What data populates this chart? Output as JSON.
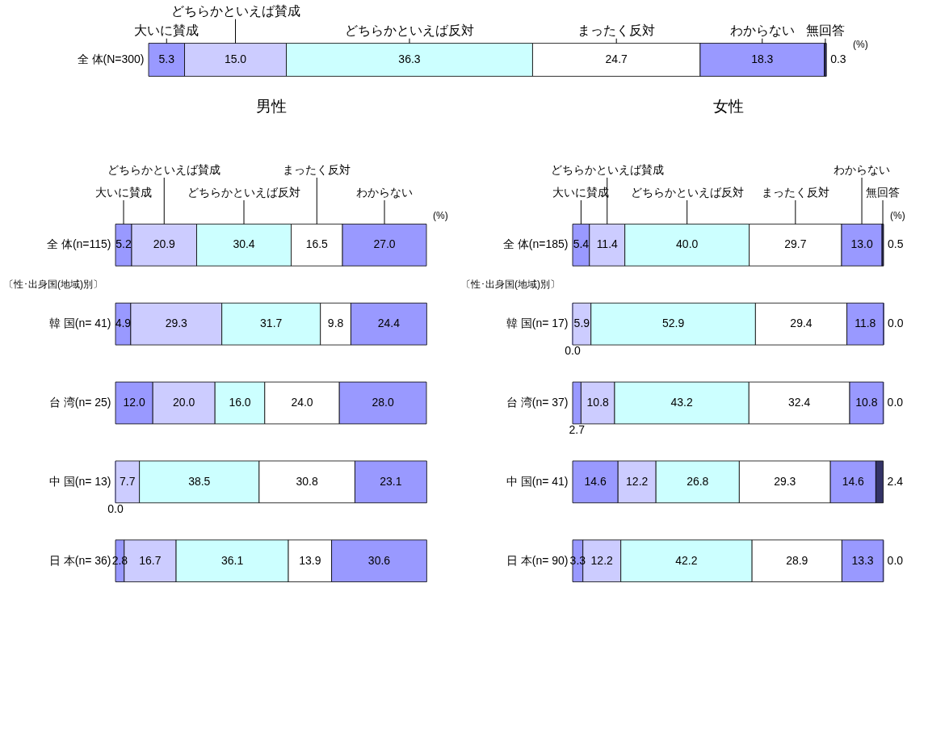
{
  "chart_data": [
    {
      "type": "bar",
      "orientation": "horizontal",
      "stacked": true,
      "tick_labels": "y",
      "xlim": [
        0,
        100
      ],
      "categories": [
        "全 体(N=300)"
      ],
      "series": [
        {
          "name": "大いに賛成",
          "color": "#9999ff",
          "values": [
            5.3
          ],
          "value_labels": [
            "5.3"
          ]
        },
        {
          "name": "どちらかといえば賛成",
          "color": "#ccccff",
          "values": [
            15.0
          ],
          "value_labels": [
            "15.0"
          ]
        },
        {
          "name": "どちらかといえば反対",
          "color": "#ccffff",
          "values": [
            36.3
          ],
          "value_labels": [
            "36.3"
          ]
        },
        {
          "name": "まったく反対",
          "color": "#ffffff",
          "values": [
            24.7
          ],
          "value_labels": [
            "24.7"
          ]
        },
        {
          "name": "わからない",
          "color": "#9999ff",
          "values": [
            18.3
          ],
          "value_labels": [
            "18.3"
          ]
        },
        {
          "name": "無回答",
          "color": "#333366",
          "values": [
            0.3
          ],
          "value_labels": [
            "0.3"
          ]
        }
      ],
      "annotations": [
        "(%)"
      ]
    },
    {
      "type": "bar",
      "orientation": "horizontal",
      "stacked": true,
      "tick_labels": "y",
      "xlim": [
        0,
        100
      ],
      "title": "男性",
      "categories": [
        "全 体(n=115)",
        "韓 国(n= 41)",
        "台 湾(n= 25)",
        "中 国(n= 13)",
        "日 本(n= 36)"
      ],
      "series": [
        {
          "name": "大いに賛成",
          "color": "#9999ff",
          "values": [
            5.2,
            4.9,
            12.0,
            0.0,
            2.8
          ],
          "value_labels": [
            "5.2",
            "4.9",
            "12.0",
            "0.0",
            "2.8"
          ]
        },
        {
          "name": "どちらかといえば賛成",
          "color": "#ccccff",
          "values": [
            20.9,
            29.3,
            20.0,
            7.7,
            16.7
          ],
          "value_labels": [
            "20.9",
            "29.3",
            "20.0",
            "7.7",
            "16.7"
          ]
        },
        {
          "name": "どちらかといえば反対",
          "color": "#ccffff",
          "values": [
            30.4,
            31.7,
            16.0,
            38.5,
            36.1
          ],
          "value_labels": [
            "30.4",
            "31.7",
            "16.0",
            "38.5",
            "36.1"
          ]
        },
        {
          "name": "まったく反対",
          "color": "#ffffff",
          "values": [
            16.5,
            9.8,
            24.0,
            30.8,
            13.9
          ],
          "value_labels": [
            "16.5",
            "9.8",
            "24.0",
            "30.8",
            "13.9"
          ]
        },
        {
          "name": "わからない",
          "color": "#9999ff",
          "values": [
            27.0,
            24.4,
            28.0,
            23.1,
            30.6
          ],
          "value_labels": [
            "27.0",
            "24.4",
            "28.0",
            "23.1",
            "30.6"
          ]
        }
      ],
      "annotations": [
        "(%)",
        "〔性･出身国(地域)別〕"
      ]
    },
    {
      "type": "bar",
      "orientation": "horizontal",
      "stacked": true,
      "tick_labels": "y",
      "xlim": [
        0,
        100
      ],
      "title": "女性",
      "categories": [
        "全 体(n=185)",
        "韓 国(n= 17)",
        "台 湾(n= 37)",
        "中 国(n= 41)",
        "日 本(n= 90)"
      ],
      "series": [
        {
          "name": "大いに賛成",
          "color": "#9999ff",
          "values": [
            5.4,
            0.0,
            2.7,
            14.6,
            3.3
          ],
          "value_labels": [
            "5.4",
            "0.0",
            "2.7",
            "14.6",
            "3.3"
          ]
        },
        {
          "name": "どちらかといえば賛成",
          "color": "#ccccff",
          "values": [
            11.4,
            5.9,
            10.8,
            12.2,
            12.2
          ],
          "value_labels": [
            "11.4",
            "5.9",
            "10.8",
            "12.2",
            "12.2"
          ]
        },
        {
          "name": "どちらかといえば反対",
          "color": "#ccffff",
          "values": [
            40.0,
            52.9,
            43.2,
            26.8,
            42.2
          ],
          "value_labels": [
            "40.0",
            "52.9",
            "43.2",
            "26.8",
            "42.2"
          ]
        },
        {
          "name": "まったく反対",
          "color": "#ffffff",
          "values": [
            29.7,
            29.4,
            32.4,
            29.3,
            28.9
          ],
          "value_labels": [
            "29.7",
            "29.4",
            "32.4",
            "29.3",
            "28.9"
          ]
        },
        {
          "name": "わからない",
          "color": "#9999ff",
          "values": [
            13.0,
            11.8,
            10.8,
            14.6,
            13.3
          ],
          "value_labels": [
            "13.0",
            "11.8",
            "10.8",
            "14.6",
            "13.3"
          ]
        },
        {
          "name": "無回答",
          "color": "#333366",
          "values": [
            0.5,
            0.0,
            0.0,
            2.4,
            0.0
          ],
          "value_labels": [
            "0.5",
            "0.0",
            "0.0",
            "2.4",
            "0.0"
          ]
        }
      ],
      "annotations": [
        "(%)",
        "〔性･出身国(地域)別〕"
      ]
    }
  ]
}
